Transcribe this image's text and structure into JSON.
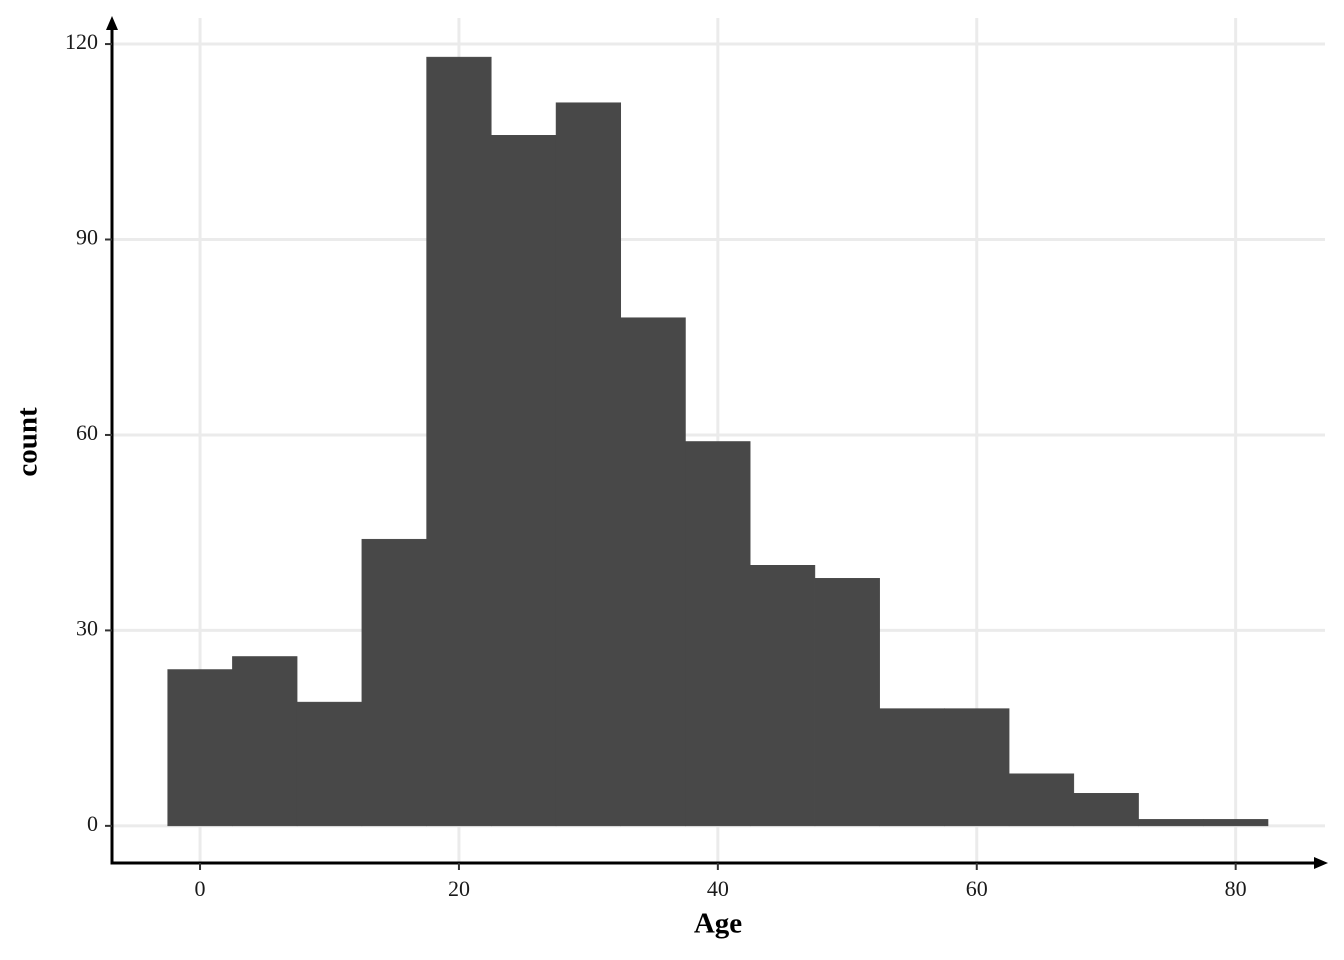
{
  "chart_data": {
    "type": "histogram",
    "x_label": "Age",
    "y_label": "count",
    "bins": [
      -2.5,
      2.5,
      7.5,
      12.5,
      17.5,
      22.5,
      27.5,
      32.5,
      37.5,
      42.5,
      47.5,
      52.5,
      57.5,
      62.5,
      67.5,
      72.5,
      77.5,
      82.5
    ],
    "values": [
      24,
      26,
      19,
      44,
      118,
      106,
      111,
      78,
      59,
      40,
      38,
      18,
      18,
      8,
      5,
      1,
      1
    ],
    "color": "#484848",
    "xlim": [
      -6.8,
      86.9
    ],
    "xticks": [
      0,
      20,
      40,
      60,
      80
    ],
    "ylim": [
      -5.7,
      124
    ],
    "yticks": [
      0,
      30,
      60,
      90,
      120
    ],
    "grid": true
  }
}
